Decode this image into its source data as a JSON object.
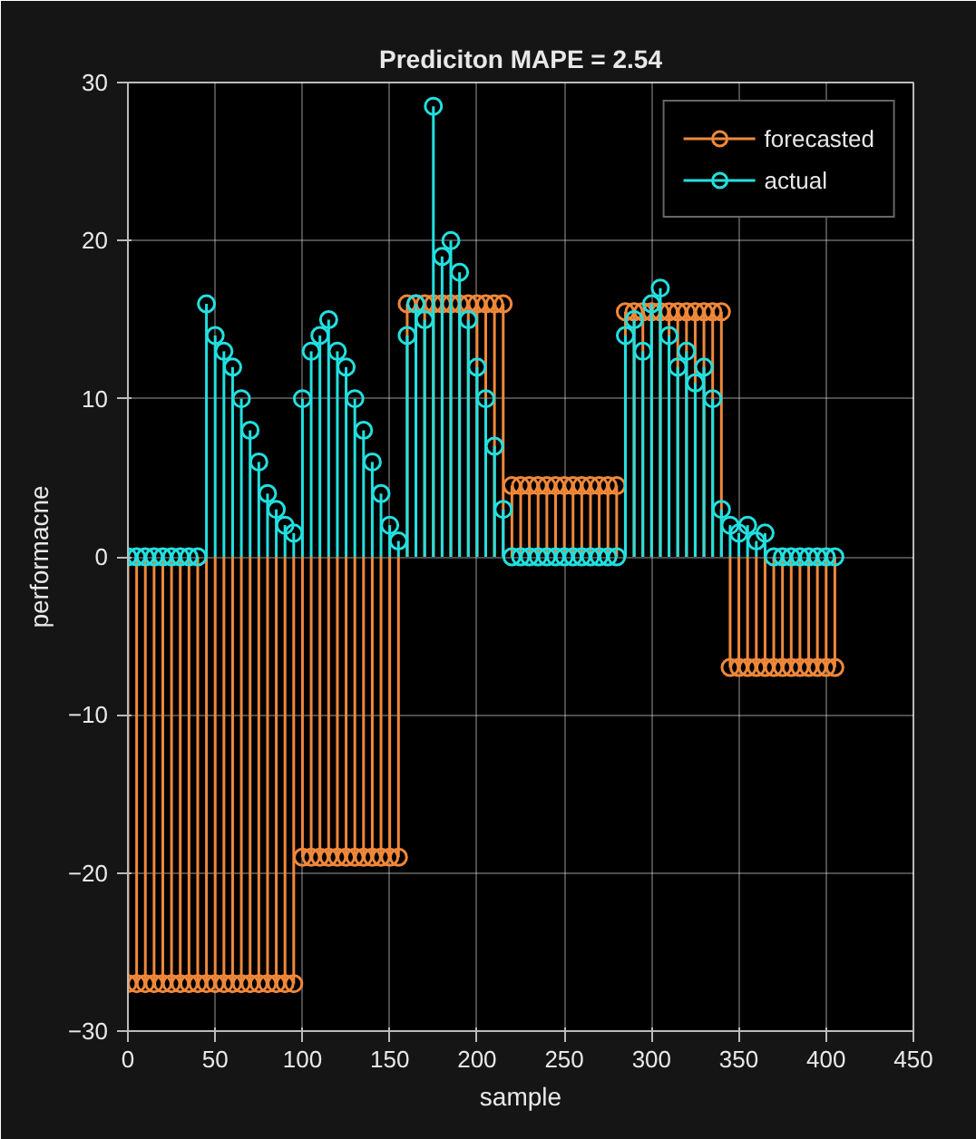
{
  "chart_data": {
    "type": "lollipop",
    "title": "Prediciton MAPE = 2.54",
    "xlabel": "sample",
    "ylabel": "performacne",
    "x": [
      0,
      5,
      10,
      15,
      20,
      25,
      30,
      35,
      40,
      45,
      50,
      55,
      60,
      65,
      70,
      75,
      80,
      85,
      90,
      95,
      100,
      105,
      110,
      115,
      120,
      125,
      130,
      135,
      140,
      145,
      150,
      155,
      160,
      165,
      170,
      175,
      180,
      185,
      190,
      195,
      200,
      205,
      210,
      215,
      220,
      225,
      230,
      235,
      240,
      245,
      250,
      255,
      260,
      265,
      270,
      275,
      280,
      285,
      290,
      295,
      300,
      305,
      310,
      315,
      320,
      325,
      330,
      335,
      340,
      345,
      350,
      355,
      360,
      365,
      370,
      375,
      380,
      385,
      390,
      395,
      400,
      405
    ],
    "series": [
      {
        "name": "forecasted",
        "color": "#f0883a",
        "values": [
          -27,
          -27,
          -27,
          -27,
          -27,
          -27,
          -27,
          -27,
          -27,
          -27,
          -27,
          -27,
          -27,
          -27,
          -27,
          -27,
          -27,
          -27,
          -27,
          -27,
          -19,
          -19,
          -19,
          -19,
          -19,
          -19,
          -19,
          -19,
          -19,
          -19,
          -19,
          -19,
          16,
          16,
          16,
          16,
          16,
          16,
          16,
          16,
          16,
          16,
          16,
          16,
          4.5,
          4.5,
          4.5,
          4.5,
          4.5,
          4.5,
          4.5,
          4.5,
          4.5,
          4.5,
          4.5,
          4.5,
          4.5,
          15.5,
          15.5,
          15.5,
          15.5,
          15.5,
          15.5,
          15.5,
          15.5,
          15.5,
          15.5,
          15.5,
          15.5,
          -7,
          -7,
          -7,
          -7,
          -7,
          -7,
          -7,
          -7,
          -7,
          -7,
          -7,
          -7,
          -7
        ]
      },
      {
        "name": "actual",
        "color": "#22e0e0",
        "values": [
          0,
          0,
          0,
          0,
          0,
          0,
          0,
          0,
          0,
          16,
          14,
          13,
          12,
          10,
          8,
          6,
          4,
          3,
          2,
          1.5,
          10,
          13,
          14,
          15,
          13,
          12,
          10,
          8,
          6,
          4,
          2,
          1,
          14,
          16,
          15,
          28.5,
          19,
          20,
          18,
          15,
          12,
          10,
          7,
          3,
          0,
          0,
          0,
          0,
          0,
          0,
          0,
          0,
          0,
          0,
          0,
          0,
          0,
          14,
          15,
          13,
          16,
          17,
          14,
          12,
          13,
          11,
          12,
          10,
          3,
          2,
          1.5,
          2,
          1,
          1.5,
          0,
          0,
          0,
          0,
          0,
          0,
          0,
          0
        ]
      }
    ],
    "xlim": [
      0,
      450
    ],
    "xticks": [
      0,
      50,
      100,
      150,
      200,
      250,
      300,
      350,
      400,
      450
    ],
    "ylim": [
      -30,
      30
    ],
    "yticks": [
      -30,
      -20,
      -10,
      0,
      10,
      20,
      30
    ],
    "grid": true,
    "legend": "top right",
    "marker": "circle"
  }
}
